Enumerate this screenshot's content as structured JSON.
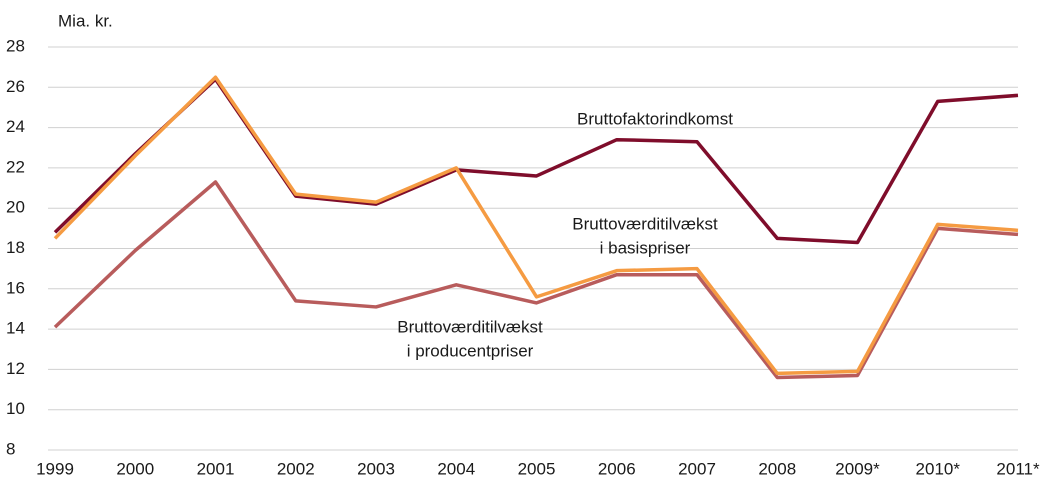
{
  "chart_data": {
    "type": "line",
    "y_axis_label": "Mia. kr.",
    "categories": [
      "1999",
      "2000",
      "2001",
      "2002",
      "2003",
      "2004",
      "2005",
      "2006",
      "2007",
      "2008",
      "2009*",
      "2010*",
      "2011*"
    ],
    "series": [
      {
        "name": [
          "Bruttofaktorindkomst"
        ],
        "color": "#7f0d2b",
        "values": [
          18.8,
          22.7,
          26.4,
          20.6,
          20.2,
          21.9,
          21.6,
          23.4,
          23.3,
          18.5,
          18.3,
          25.3,
          25.6
        ]
      },
      {
        "name": [
          "Bruttoværditilvækst",
          "i producentpriser"
        ],
        "color": "#b85c5c",
        "values": [
          14.1,
          17.9,
          21.3,
          15.4,
          15.1,
          16.2,
          15.3,
          16.7,
          16.7,
          11.6,
          11.7,
          19.0,
          18.7
        ]
      },
      {
        "name": [
          "Bruttoværditilvækst",
          "i basispriser"
        ],
        "color": "#f59b42",
        "values": [
          18.5,
          22.6,
          26.5,
          20.7,
          20.3,
          22.0,
          15.6,
          16.9,
          17.0,
          11.8,
          11.9,
          19.2,
          18.9
        ]
      }
    ],
    "ylim": [
      8,
      28
    ],
    "yticks": [
      8,
      10,
      12,
      14,
      16,
      18,
      20,
      22,
      24,
      26,
      28
    ],
    "grid": true
  }
}
